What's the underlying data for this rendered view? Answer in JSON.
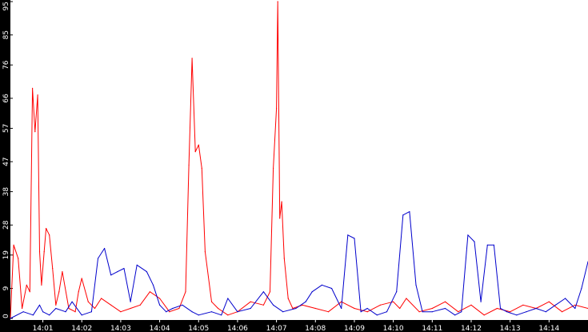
{
  "chart_data": {
    "type": "line",
    "title": "",
    "xlabel": "",
    "ylabel": "",
    "ylim": [
      0,
      95
    ],
    "grid": false,
    "legend": "none",
    "y_ticks": [
      0,
      9,
      19,
      28,
      38,
      47,
      57,
      66,
      76,
      85,
      95
    ],
    "y_tick_labels": [
      "0",
      "9",
      "19",
      "28",
      "38",
      "47",
      "57",
      "66",
      "76",
      "85",
      "95"
    ],
    "x_range": [
      "14:00:10",
      "14:15:00"
    ],
    "x_ticks": [
      "14:01:00",
      "14:02:00",
      "14:03:00",
      "14:04:00",
      "14:05:00",
      "14:06:00",
      "14:07:00",
      "14:08:00",
      "14:09:00",
      "14:10:00",
      "14:11:00",
      "14:12:00",
      "14:13:00",
      "14:14:00"
    ],
    "x_tick_labels": [
      "14:01",
      "14:02",
      "14:03",
      "14:04",
      "14:05",
      "14:06",
      "14:07",
      "14:08",
      "14:09",
      "14:10",
      "14:11",
      "14:12",
      "14:13",
      "14:14"
    ],
    "series": [
      {
        "color": "#ff0000",
        "x": [
          "14:00:10",
          "14:00:15",
          "14:00:22",
          "14:00:28",
          "14:00:35",
          "14:00:40",
          "14:00:44",
          "14:00:48",
          "14:00:52",
          "14:00:55",
          "14:00:58",
          "14:01:02",
          "14:01:05",
          "14:01:10",
          "14:01:15",
          "14:01:20",
          "14:01:25",
          "14:01:30",
          "14:01:40",
          "14:01:50",
          "14:01:55",
          "14:02:00",
          "14:02:10",
          "14:02:20",
          "14:02:30",
          "14:02:45",
          "14:03:00",
          "14:03:15",
          "14:03:30",
          "14:03:45",
          "14:04:00",
          "14:04:15",
          "14:04:30",
          "14:04:40",
          "14:04:45",
          "14:04:50",
          "14:04:55",
          "14:05:00",
          "14:05:05",
          "14:05:10",
          "14:05:20",
          "14:05:30",
          "14:05:45",
          "14:06:00",
          "14:06:20",
          "14:06:40",
          "14:06:50",
          "14:06:55",
          "14:07:00",
          "14:07:02",
          "14:07:05",
          "14:07:08",
          "14:07:12",
          "14:07:18",
          "14:07:25",
          "14:07:40",
          "14:08:00",
          "14:08:20",
          "14:08:40",
          "14:09:00",
          "14:09:20",
          "14:09:40",
          "14:10:00",
          "14:10:10",
          "14:10:20",
          "14:10:40",
          "14:11:00",
          "14:11:20",
          "14:11:40",
          "14:12:00",
          "14:12:20",
          "14:12:40",
          "14:13:00",
          "14:13:20",
          "14:13:40",
          "14:14:00",
          "14:14:20",
          "14:14:40",
          "14:15:00"
        ],
        "y": [
          0,
          22,
          18,
          3,
          10,
          8,
          69,
          56,
          67,
          20,
          10,
          20,
          27,
          25,
          15,
          4,
          8,
          14,
          3,
          2,
          8,
          12,
          5,
          3,
          6,
          4,
          2,
          3,
          4,
          8,
          6,
          2,
          3,
          8,
          46,
          78,
          50,
          52,
          45,
          20,
          5,
          3,
          1,
          2,
          5,
          4,
          8,
          45,
          63,
          95,
          30,
          35,
          18,
          6,
          3,
          4,
          3,
          2,
          5,
          3,
          2,
          4,
          5,
          3,
          6,
          2,
          3,
          5,
          2,
          4,
          1,
          3,
          2,
          4,
          3,
          5,
          2,
          4,
          3
        ]
      },
      {
        "color": "#0000cc",
        "x": [
          "14:00:10",
          "14:00:30",
          "14:00:45",
          "14:00:55",
          "14:01:00",
          "14:01:10",
          "14:01:20",
          "14:01:35",
          "14:01:45",
          "14:02:00",
          "14:02:15",
          "14:02:25",
          "14:02:35",
          "14:02:45",
          "14:02:55",
          "14:03:05",
          "14:03:15",
          "14:03:25",
          "14:03:40",
          "14:03:50",
          "14:04:00",
          "14:04:10",
          "14:04:20",
          "14:04:35",
          "14:04:50",
          "14:05:00",
          "14:05:20",
          "14:05:35",
          "14:05:45",
          "14:06:00",
          "14:06:20",
          "14:06:40",
          "14:06:55",
          "14:07:10",
          "14:07:30",
          "14:07:45",
          "14:07:55",
          "14:08:10",
          "14:08:25",
          "14:08:40",
          "14:08:50",
          "14:09:00",
          "14:09:10",
          "14:09:20",
          "14:09:35",
          "14:09:50",
          "14:10:05",
          "14:10:15",
          "14:10:25",
          "14:10:35",
          "14:10:45",
          "14:11:00",
          "14:11:20",
          "14:11:35",
          "14:11:45",
          "14:11:55",
          "14:12:05",
          "14:12:15",
          "14:12:25",
          "14:12:35",
          "14:12:45",
          "14:12:55",
          "14:13:10",
          "14:13:25",
          "14:13:40",
          "14:13:55",
          "14:14:10",
          "14:14:25",
          "14:14:40",
          "14:14:50",
          "14:15:00"
        ],
        "y": [
          0,
          2,
          1,
          4,
          2,
          1,
          3,
          2,
          5,
          1,
          2,
          18,
          21,
          13,
          14,
          15,
          5,
          16,
          14,
          10,
          4,
          2,
          3,
          4,
          2,
          1,
          2,
          1,
          6,
          2,
          3,
          8,
          4,
          2,
          3,
          5,
          8,
          10,
          9,
          3,
          25,
          24,
          2,
          3,
          1,
          2,
          8,
          31,
          32,
          10,
          2,
          2,
          3,
          1,
          2,
          25,
          23,
          5,
          22,
          22,
          3,
          2,
          1,
          2,
          3,
          2,
          4,
          6,
          3,
          9,
          17
        ]
      }
    ]
  }
}
